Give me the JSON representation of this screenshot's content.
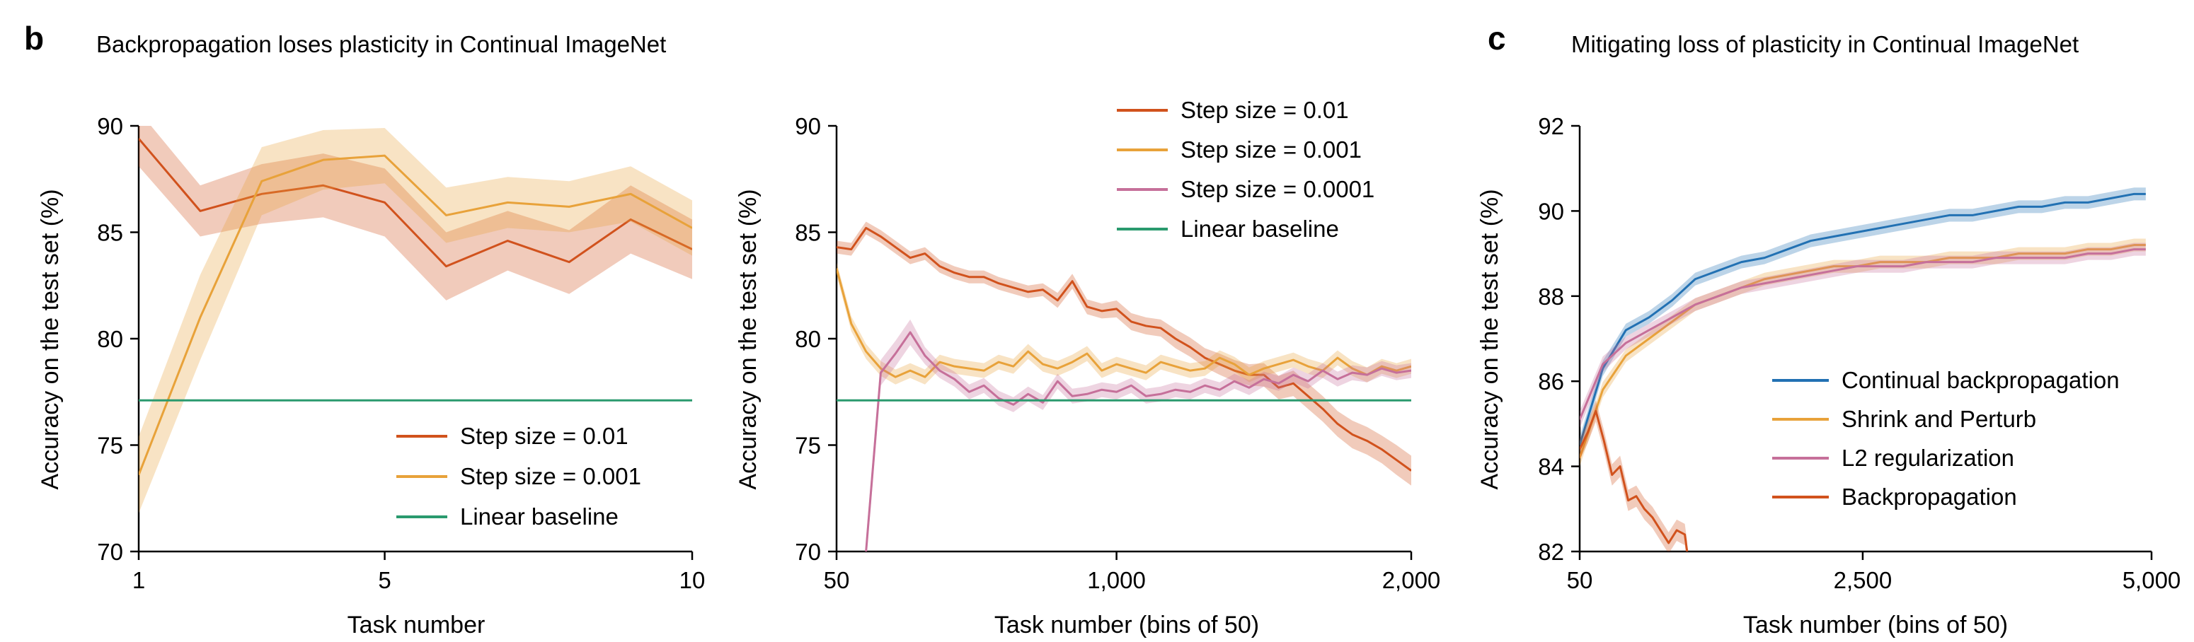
{
  "panel_b": {
    "letter": "b",
    "title": "Backpropagation loses plasticity in Continual ImageNet"
  },
  "panel_c": {
    "letter": "c",
    "title": "Mitigating loss of plasticity in Continual ImageNet"
  },
  "colors": {
    "step_0_01": "#d1521d",
    "step_0_001": "#e8a23a",
    "step_0_0001": "#c6709a",
    "linear": "#2a9a6e",
    "cbp": "#2271b3",
    "shrink": "#e8a23a",
    "l2": "#c6709a",
    "bp": "#d1521d"
  },
  "chart_data": [
    {
      "type": "line",
      "id": "b1",
      "xlabel": "Task number",
      "ylabel": "Accuracy on the test set (%)",
      "xlim": [
        1,
        10
      ],
      "ylim": [
        70,
        90
      ],
      "xticks": [
        1,
        5,
        10
      ],
      "xticklabels": [
        "1",
        "5",
        "10"
      ],
      "yticks": [
        70,
        75,
        80,
        85,
        90
      ],
      "yticklabels": [
        "70",
        "75",
        "80",
        "85",
        "90"
      ],
      "legend_position": "lower-right",
      "series": [
        {
          "name": "Step size = 0.01",
          "color_key": "step_0_01",
          "x": [
            1,
            2,
            3,
            4,
            5,
            6,
            7,
            8,
            9,
            10
          ],
          "y": [
            89.4,
            86.0,
            86.8,
            87.2,
            86.4,
            83.4,
            84.6,
            83.6,
            85.6,
            84.2
          ],
          "band": [
            1.3,
            1.2,
            1.4,
            1.5,
            1.6,
            1.6,
            1.4,
            1.5,
            1.6,
            1.4
          ]
        },
        {
          "name": "Step size = 0.001",
          "color_key": "step_0_001",
          "x": [
            1,
            2,
            3,
            4,
            5,
            6,
            7,
            8,
            9,
            10
          ],
          "y": [
            73.6,
            81.0,
            87.4,
            88.4,
            88.6,
            85.8,
            86.4,
            86.2,
            86.8,
            85.2
          ],
          "band": [
            1.8,
            2.0,
            1.6,
            1.4,
            1.3,
            1.3,
            1.2,
            1.2,
            1.3,
            1.3
          ]
        },
        {
          "name": "Linear baseline",
          "color_key": "linear",
          "x": [
            1,
            10
          ],
          "y": [
            77.1,
            77.1
          ],
          "band": [
            0,
            0
          ]
        }
      ]
    },
    {
      "type": "line",
      "id": "b2",
      "xlabel": "Task number (bins of 50)",
      "ylabel": "Accuracy on the test set (%)",
      "xlim": [
        50,
        2000
      ],
      "ylim": [
        70,
        90
      ],
      "xticks": [
        50,
        1000,
        2000
      ],
      "xticklabels": [
        "50",
        "1,000",
        "2,000"
      ],
      "yticks": [
        70,
        75,
        80,
        85,
        90
      ],
      "yticklabels": [
        "70",
        "75",
        "80",
        "85",
        "90"
      ],
      "legend_position": "top-center",
      "series": [
        {
          "name": "Step size = 0.01",
          "color_key": "step_0_01",
          "x": [
            50,
            100,
            150,
            200,
            250,
            300,
            350,
            400,
            450,
            500,
            550,
            600,
            650,
            700,
            750,
            800,
            850,
            900,
            950,
            1000,
            1050,
            1100,
            1150,
            1200,
            1250,
            1300,
            1350,
            1400,
            1450,
            1500,
            1550,
            1600,
            1650,
            1700,
            1750,
            1800,
            1850,
            1900,
            1950,
            2000
          ],
          "y": [
            84.3,
            84.2,
            85.2,
            84.8,
            84.3,
            83.8,
            84.0,
            83.4,
            83.1,
            82.9,
            82.9,
            82.6,
            82.4,
            82.2,
            82.3,
            81.8,
            82.7,
            81.5,
            81.3,
            81.4,
            80.8,
            80.6,
            80.5,
            80.0,
            79.6,
            79.1,
            78.8,
            78.5,
            78.3,
            78.3,
            77.7,
            77.9,
            77.3,
            76.7,
            76.0,
            75.5,
            75.2,
            74.8,
            74.3,
            73.8
          ],
          "band": [
            0.3,
            0.3,
            0.3,
            0.3,
            0.3,
            0.3,
            0.3,
            0.3,
            0.3,
            0.3,
            0.3,
            0.3,
            0.3,
            0.3,
            0.3,
            0.35,
            0.35,
            0.35,
            0.35,
            0.4,
            0.4,
            0.4,
            0.4,
            0.45,
            0.45,
            0.45,
            0.5,
            0.5,
            0.5,
            0.55,
            0.55,
            0.6,
            0.6,
            0.6,
            0.6,
            0.65,
            0.65,
            0.65,
            0.7,
            0.7
          ]
        },
        {
          "name": "Step size = 0.001",
          "color_key": "step_0_001",
          "x": [
            50,
            100,
            150,
            200,
            250,
            300,
            350,
            400,
            450,
            500,
            550,
            600,
            650,
            700,
            750,
            800,
            850,
            900,
            950,
            1000,
            1050,
            1100,
            1150,
            1200,
            1250,
            1300,
            1350,
            1400,
            1450,
            1500,
            1550,
            1600,
            1650,
            1700,
            1750,
            1800,
            1850,
            1900,
            1950,
            2000
          ],
          "y": [
            83.3,
            80.7,
            79.4,
            78.6,
            78.2,
            78.5,
            78.2,
            78.9,
            78.7,
            78.6,
            78.5,
            78.9,
            78.7,
            79.4,
            78.8,
            78.6,
            78.9,
            79.3,
            78.5,
            78.8,
            78.6,
            78.4,
            78.9,
            78.7,
            78.5,
            78.6,
            79.1,
            78.8,
            78.3,
            78.6,
            78.8,
            79.0,
            78.7,
            78.5,
            79.1,
            78.6,
            78.3,
            78.7,
            78.5,
            78.7
          ],
          "band": [
            0.3,
            0.35,
            0.35,
            0.35,
            0.35,
            0.35,
            0.35,
            0.35,
            0.35,
            0.35,
            0.35,
            0.35,
            0.35,
            0.35,
            0.35,
            0.35,
            0.35,
            0.35,
            0.35,
            0.35,
            0.35,
            0.35,
            0.35,
            0.35,
            0.35,
            0.35,
            0.35,
            0.35,
            0.35,
            0.35,
            0.35,
            0.35,
            0.35,
            0.35,
            0.35,
            0.35,
            0.35,
            0.35,
            0.35,
            0.35
          ]
        },
        {
          "name": "Step size = 0.0001",
          "color_key": "step_0_0001",
          "x": [
            150,
            200,
            250,
            300,
            350,
            400,
            450,
            500,
            550,
            600,
            650,
            700,
            750,
            800,
            850,
            900,
            950,
            1000,
            1050,
            1100,
            1150,
            1200,
            1250,
            1300,
            1350,
            1400,
            1450,
            1500,
            1550,
            1600,
            1650,
            1700,
            1750,
            1800,
            1850,
            1900,
            1950,
            2000
          ],
          "y": [
            70.0,
            78.4,
            79.3,
            80.3,
            79.2,
            78.5,
            78.1,
            77.5,
            77.8,
            77.2,
            76.9,
            77.4,
            77.0,
            78.0,
            77.3,
            77.4,
            77.6,
            77.5,
            77.8,
            77.3,
            77.4,
            77.6,
            77.5,
            77.8,
            77.6,
            78.0,
            77.7,
            78.1,
            77.9,
            78.3,
            78.0,
            78.5,
            78.1,
            78.4,
            78.3,
            78.6,
            78.4,
            78.5
          ],
          "band": [
            0.6,
            0.6,
            0.6,
            0.6,
            0.4,
            0.35,
            0.35,
            0.35,
            0.35,
            0.35,
            0.35,
            0.35,
            0.35,
            0.35,
            0.35,
            0.35,
            0.35,
            0.35,
            0.35,
            0.35,
            0.35,
            0.35,
            0.35,
            0.35,
            0.35,
            0.35,
            0.35,
            0.35,
            0.35,
            0.35,
            0.35,
            0.35,
            0.35,
            0.35,
            0.35,
            0.35,
            0.35,
            0.35
          ]
        },
        {
          "name": "Linear baseline",
          "color_key": "linear",
          "x": [
            50,
            2000
          ],
          "y": [
            77.1,
            77.1
          ],
          "band": [
            0,
            0
          ]
        }
      ]
    },
    {
      "type": "line",
      "id": "c",
      "xlabel": "Task number (bins of 50)",
      "ylabel": "Accuracy on the test set (%)",
      "xlim": [
        50,
        5000
      ],
      "ylim": [
        82,
        92
      ],
      "xticks": [
        50,
        2500,
        5000
      ],
      "xticklabels": [
        "50",
        "2,500",
        "5,000"
      ],
      "yticks": [
        82,
        84,
        86,
        88,
        90,
        92
      ],
      "yticklabels": [
        "82",
        "84",
        "86",
        "88",
        "90",
        "92"
      ],
      "legend_position": "right",
      "series": [
        {
          "name": "Continual backpropagation",
          "color_key": "cbp",
          "x": [
            50,
            250,
            450,
            650,
            850,
            1050,
            1250,
            1450,
            1650,
            1850,
            2050,
            2250,
            2450,
            2650,
            2850,
            3050,
            3250,
            3450,
            3650,
            3850,
            4050,
            4250,
            4450,
            4650,
            4850,
            4950
          ],
          "y": [
            84.5,
            86.3,
            87.2,
            87.5,
            87.9,
            88.4,
            88.6,
            88.8,
            88.9,
            89.1,
            89.3,
            89.4,
            89.5,
            89.6,
            89.7,
            89.8,
            89.9,
            89.9,
            90.0,
            90.1,
            90.1,
            90.2,
            90.2,
            90.3,
            90.4,
            90.4
          ],
          "band": [
            0.2,
            0.18,
            0.15,
            0.15,
            0.15,
            0.15,
            0.15,
            0.15,
            0.15,
            0.15,
            0.15,
            0.15,
            0.15,
            0.15,
            0.15,
            0.15,
            0.15,
            0.15,
            0.15,
            0.15,
            0.15,
            0.15,
            0.15,
            0.15,
            0.15,
            0.15
          ]
        },
        {
          "name": "Shrink and Perturb",
          "color_key": "shrink",
          "x": [
            50,
            250,
            450,
            650,
            850,
            1050,
            1250,
            1450,
            1650,
            1850,
            2050,
            2250,
            2450,
            2650,
            2850,
            3050,
            3250,
            3450,
            3650,
            3850,
            4050,
            4250,
            4450,
            4650,
            4850,
            4950
          ],
          "y": [
            84.2,
            85.8,
            86.6,
            87.0,
            87.4,
            87.8,
            88.0,
            88.2,
            88.4,
            88.5,
            88.6,
            88.7,
            88.7,
            88.8,
            88.8,
            88.8,
            88.9,
            88.9,
            88.9,
            89.0,
            89.0,
            89.0,
            89.1,
            89.1,
            89.2,
            89.2
          ],
          "band": [
            0.2,
            0.18,
            0.15,
            0.15,
            0.15,
            0.15,
            0.15,
            0.15,
            0.15,
            0.15,
            0.15,
            0.15,
            0.15,
            0.15,
            0.15,
            0.15,
            0.15,
            0.15,
            0.15,
            0.15,
            0.15,
            0.15,
            0.15,
            0.15,
            0.15,
            0.15
          ]
        },
        {
          "name": "L2 regularization",
          "color_key": "l2",
          "x": [
            50,
            250,
            450,
            650,
            850,
            1050,
            1250,
            1450,
            1650,
            1850,
            2050,
            2250,
            2450,
            2650,
            2850,
            3050,
            3250,
            3450,
            3650,
            3850,
            4050,
            4250,
            4450,
            4650,
            4850,
            4950
          ],
          "y": [
            85.1,
            86.4,
            86.9,
            87.2,
            87.5,
            87.8,
            88.0,
            88.2,
            88.3,
            88.4,
            88.5,
            88.6,
            88.7,
            88.7,
            88.7,
            88.8,
            88.8,
            88.8,
            88.9,
            88.9,
            88.9,
            88.9,
            89.0,
            89.0,
            89.1,
            89.1
          ],
          "band": [
            0.2,
            0.18,
            0.15,
            0.15,
            0.15,
            0.15,
            0.15,
            0.15,
            0.15,
            0.15,
            0.15,
            0.15,
            0.15,
            0.15,
            0.15,
            0.15,
            0.15,
            0.15,
            0.15,
            0.15,
            0.15,
            0.15,
            0.15,
            0.15,
            0.15,
            0.15
          ]
        },
        {
          "name": "Backpropagation",
          "color_key": "bp",
          "x": [
            50,
            120,
            190,
            260,
            330,
            400,
            470,
            540,
            610,
            680,
            750,
            820,
            890,
            960,
            980
          ],
          "y": [
            84.4,
            84.8,
            85.3,
            84.6,
            83.8,
            84.0,
            83.2,
            83.3,
            83.0,
            82.8,
            82.5,
            82.2,
            82.5,
            82.4,
            82.0
          ],
          "band": [
            0.25,
            0.25,
            0.25,
            0.25,
            0.25,
            0.25,
            0.25,
            0.25,
            0.25,
            0.25,
            0.25,
            0.25,
            0.25,
            0.25,
            0.25
          ]
        }
      ]
    }
  ]
}
